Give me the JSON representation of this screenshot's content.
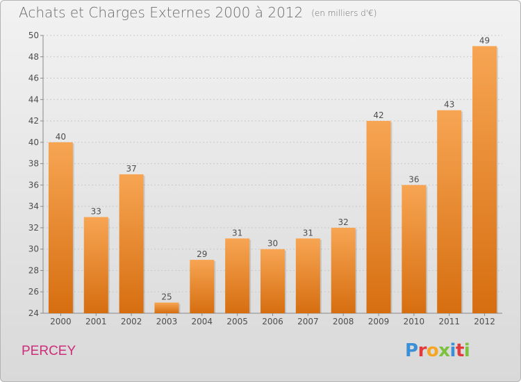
{
  "title": "Achats et Charges Externes 2000 à 2012",
  "subtitle": "(en milliers d'€)",
  "commune": "PERCEY",
  "logo": {
    "letters": [
      "P",
      "r",
      "o",
      "x",
      "i",
      "t",
      "i"
    ],
    "colors": [
      "#3a8fd6",
      "#e23a3a",
      "#f5a623",
      "#7cc23d",
      "#3a8fd6",
      "#e23a3a",
      "#7cc23d"
    ]
  },
  "colors": {
    "bar_top": "#f7a553",
    "bar_bottom": "#d66e10",
    "commune": "#cc2e7a",
    "grid": "#c8c8c8"
  },
  "chart_data": {
    "type": "bar",
    "title": "Achats et Charges Externes 2000 à 2012",
    "subtitle": "(en milliers d'€)",
    "xlabel": "",
    "ylabel": "",
    "categories": [
      "2000",
      "2001",
      "2002",
      "2003",
      "2004",
      "2005",
      "2006",
      "2007",
      "2008",
      "2009",
      "2010",
      "2011",
      "2012"
    ],
    "values": [
      40,
      33,
      37,
      25,
      29,
      31,
      30,
      31,
      32,
      42,
      36,
      43,
      49
    ],
    "ylim": [
      24,
      50
    ],
    "yticks": [
      24,
      26,
      28,
      30,
      32,
      34,
      36,
      38,
      40,
      42,
      44,
      46,
      48,
      50
    ],
    "grid": true,
    "legend": "none"
  }
}
